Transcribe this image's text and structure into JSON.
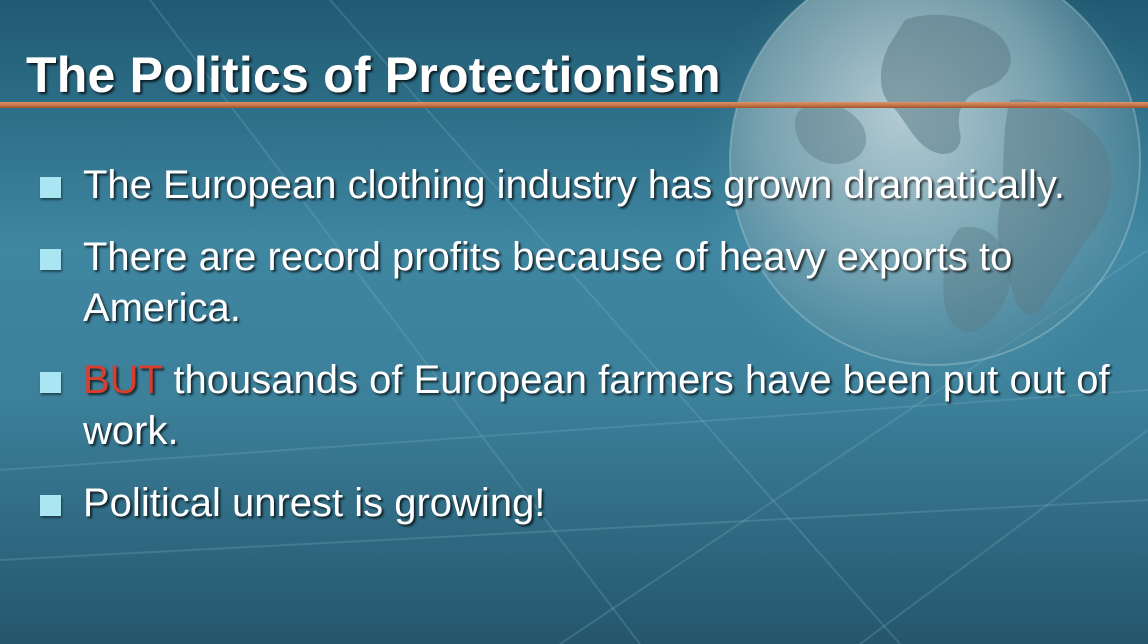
{
  "slide": {
    "title": "The Politics of Protectionism",
    "bullets": [
      {
        "text": "The European clothing industry has grown dramatically."
      },
      {
        "text": "There are record profits because of heavy exports to America."
      },
      {
        "highlight": "BUT",
        "text": " thousands of European farmers have been put out of work."
      },
      {
        "text": "Political unrest is growing!"
      }
    ]
  },
  "colors": {
    "background": "#3f86a1",
    "title_text": "#ffffff",
    "title_rule": "#c67446",
    "bullet_square": "#a9e6f2",
    "highlight": "#d93d2c"
  },
  "decor": {
    "background_image": "globe-icon"
  }
}
